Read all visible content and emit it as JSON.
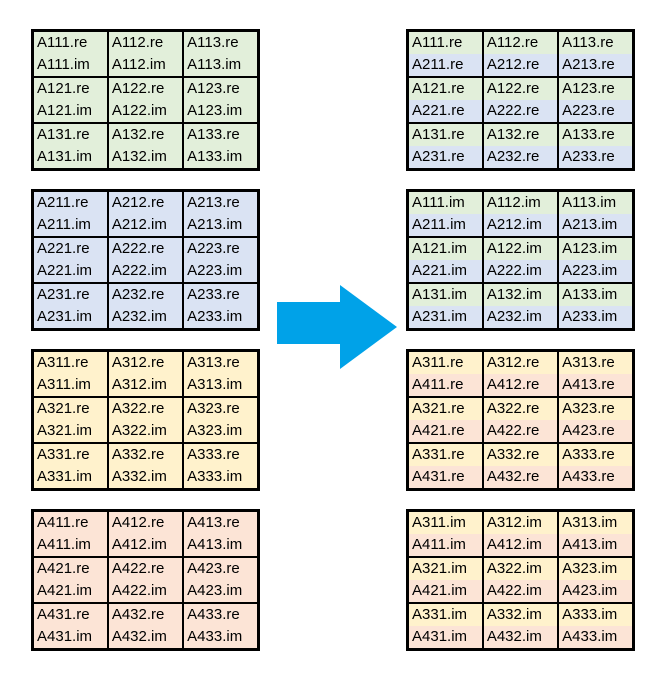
{
  "colors": {
    "green": "#E2EFDA",
    "blue": "#DAE3F3",
    "yellow": "#FFF2CC",
    "pink": "#FCE4D6",
    "arrow": "#00A2E8",
    "border": "#000000",
    "text": "#000000"
  },
  "arrow": {
    "direction": "right"
  },
  "left_tables": [
    {
      "name": "source-table-1",
      "line_colors": [
        "green",
        "green"
      ],
      "rows": [
        [
          [
            "A111.re",
            "A111.im"
          ],
          [
            "A112.re",
            "A112.im"
          ],
          [
            "A113.re",
            "A113.im"
          ]
        ],
        [
          [
            "A121.re",
            "A121.im"
          ],
          [
            "A122.re",
            "A122.im"
          ],
          [
            "A123.re",
            "A123.im"
          ]
        ],
        [
          [
            "A131.re",
            "A131.im"
          ],
          [
            "A132.re",
            "A132.im"
          ],
          [
            "A133.re",
            "A133.im"
          ]
        ]
      ]
    },
    {
      "name": "source-table-2",
      "line_colors": [
        "blue",
        "blue"
      ],
      "rows": [
        [
          [
            "A211.re",
            "A211.im"
          ],
          [
            "A212.re",
            "A212.im"
          ],
          [
            "A213.re",
            "A213.im"
          ]
        ],
        [
          [
            "A221.re",
            "A221.im"
          ],
          [
            "A222.re",
            "A222.im"
          ],
          [
            "A223.re",
            "A223.im"
          ]
        ],
        [
          [
            "A231.re",
            "A231.im"
          ],
          [
            "A232.re",
            "A232.im"
          ],
          [
            "A233.re",
            "A233.im"
          ]
        ]
      ]
    },
    {
      "name": "source-table-3",
      "line_colors": [
        "yellow",
        "yellow"
      ],
      "rows": [
        [
          [
            "A311.re",
            "A311.im"
          ],
          [
            "A312.re",
            "A312.im"
          ],
          [
            "A313.re",
            "A313.im"
          ]
        ],
        [
          [
            "A321.re",
            "A321.im"
          ],
          [
            "A322.re",
            "A322.im"
          ],
          [
            "A323.re",
            "A323.im"
          ]
        ],
        [
          [
            "A331.re",
            "A331.im"
          ],
          [
            "A332.re",
            "A332.im"
          ],
          [
            "A333.re",
            "A333.im"
          ]
        ]
      ]
    },
    {
      "name": "source-table-4",
      "line_colors": [
        "pink",
        "pink"
      ],
      "rows": [
        [
          [
            "A411.re",
            "A411.im"
          ],
          [
            "A412.re",
            "A412.im"
          ],
          [
            "A413.re",
            "A413.im"
          ]
        ],
        [
          [
            "A421.re",
            "A421.im"
          ],
          [
            "A422.re",
            "A422.im"
          ],
          [
            "A423.re",
            "A423.im"
          ]
        ],
        [
          [
            "A431.re",
            "A431.im"
          ],
          [
            "A432.re",
            "A432.im"
          ],
          [
            "A433.re",
            "A433.im"
          ]
        ]
      ]
    }
  ],
  "right_tables": [
    {
      "name": "result-table-1",
      "line_colors": [
        "green",
        "blue"
      ],
      "rows": [
        [
          [
            "A111.re",
            "A211.re"
          ],
          [
            "A112.re",
            "A212.re"
          ],
          [
            "A113.re",
            "A213.re"
          ]
        ],
        [
          [
            "A121.re",
            "A221.re"
          ],
          [
            "A122.re",
            "A222.re"
          ],
          [
            "A123.re",
            "A223.re"
          ]
        ],
        [
          [
            "A131.re",
            "A231.re"
          ],
          [
            "A132.re",
            "A232.re"
          ],
          [
            "A133.re",
            "A233.re"
          ]
        ]
      ]
    },
    {
      "name": "result-table-2",
      "line_colors": [
        "green",
        "blue"
      ],
      "rows": [
        [
          [
            "A111.im",
            "A211.im"
          ],
          [
            "A112.im",
            "A212.im"
          ],
          [
            "A113.im",
            "A213.im"
          ]
        ],
        [
          [
            "A121.im",
            "A221.im"
          ],
          [
            "A122.im",
            "A222.im"
          ],
          [
            "A123.im",
            "A223.im"
          ]
        ],
        [
          [
            "A131.im",
            "A231.im"
          ],
          [
            "A132.im",
            "A232.im"
          ],
          [
            "A133.im",
            "A233.im"
          ]
        ]
      ]
    },
    {
      "name": "result-table-3",
      "line_colors": [
        "yellow",
        "pink"
      ],
      "rows": [
        [
          [
            "A311.re",
            "A411.re"
          ],
          [
            "A312.re",
            "A412.re"
          ],
          [
            "A313.re",
            "A413.re"
          ]
        ],
        [
          [
            "A321.re",
            "A421.re"
          ],
          [
            "A322.re",
            "A422.re"
          ],
          [
            "A323.re",
            "A423.re"
          ]
        ],
        [
          [
            "A331.re",
            "A431.re"
          ],
          [
            "A332.re",
            "A432.re"
          ],
          [
            "A333.re",
            "A433.re"
          ]
        ]
      ]
    },
    {
      "name": "result-table-4",
      "line_colors": [
        "yellow",
        "pink"
      ],
      "rows": [
        [
          [
            "A311.im",
            "A411.im"
          ],
          [
            "A312.im",
            "A412.im"
          ],
          [
            "A313.im",
            "A413.im"
          ]
        ],
        [
          [
            "A321.im",
            "A421.im"
          ],
          [
            "A322.im",
            "A422.im"
          ],
          [
            "A323.im",
            "A423.im"
          ]
        ],
        [
          [
            "A331.im",
            "A431.im"
          ],
          [
            "A332.im",
            "A432.im"
          ],
          [
            "A333.im",
            "A433.im"
          ]
        ]
      ]
    }
  ]
}
